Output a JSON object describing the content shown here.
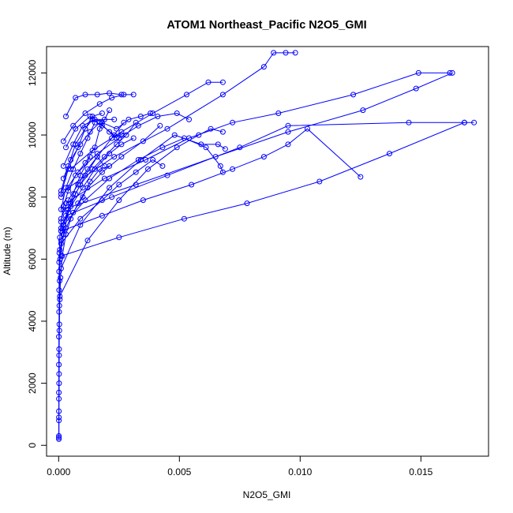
{
  "chart_data": {
    "type": "line",
    "title": "ATOM1 Northeast_Pacific N2O5_GMI",
    "xlabel": "N2O5_GMI",
    "ylabel": "Altitude (m)",
    "xlim": [
      -0.0005,
      0.0178
    ],
    "ylim": [
      -350,
      12850
    ],
    "x_ticks": [
      0.0,
      0.005,
      0.01,
      0.015
    ],
    "x_tick_labels": [
      "0.000",
      "0.005",
      "0.010",
      "0.015"
    ],
    "y_ticks": [
      0,
      2000,
      4000,
      6000,
      8000,
      10000,
      12000
    ],
    "y_tick_labels": [
      "0",
      "2000",
      "4000",
      "6000",
      "8000",
      "10000",
      "12000"
    ],
    "series_color": "#0000ff",
    "grid": false,
    "legend": "none",
    "series": [
      {
        "x": [
          1e-05,
          1e-05,
          1e-05,
          1e-05,
          1e-05,
          2e-05,
          2e-05,
          2e-05,
          3e-05,
          5e-05,
          0.0001,
          0.0002,
          0.0004,
          0.0007,
          0.0011,
          0.0015,
          0.0017,
          0.0021
        ],
        "y": [
          200,
          900,
          1700,
          2600,
          3500,
          4300,
          5000,
          5600,
          6200,
          6700,
          7200,
          7700,
          8200,
          8700,
          9100,
          9600,
          10200,
          10800
        ]
      },
      {
        "x": [
          1e-05,
          1e-05,
          2e-05,
          2e-05,
          3e-05,
          3e-05,
          4e-05,
          6e-05,
          0.0001,
          0.0002,
          0.0004,
          0.0006,
          0.0009,
          0.0013
        ],
        "y": [
          300,
          1100,
          2000,
          2900,
          3700,
          4500,
          5300,
          6000,
          6600,
          7100,
          7600,
          8100,
          8700,
          9300
        ]
      },
      {
        "x": [
          1e-05,
          1e-05,
          1e-05,
          2e-05,
          2e-05,
          3e-05,
          5e-05,
          8e-05,
          0.00015,
          0.0003,
          0.0005,
          0.0008,
          0.0012,
          0.0018,
          0.0026,
          0.0035,
          0.0042
        ],
        "y": [
          250,
          800,
          1500,
          2300,
          3100,
          3900,
          4700,
          5400,
          6100,
          6800,
          7300,
          7800,
          8300,
          8800,
          9300,
          9800,
          10300
        ]
      },
      {
        "x": [
          0.0001,
          0.0018,
          0.0035,
          0.0055,
          0.0072,
          0.0085,
          0.0095,
          0.0103,
          0.0125
        ],
        "y": [
          6900,
          7400,
          7900,
          8400,
          8900,
          9300,
          9700,
          10200,
          8650
        ]
      },
      {
        "x": [
          0.0002,
          0.0032,
          0.0065,
          0.0095,
          0.0126,
          0.0148,
          0.0163
        ],
        "y": [
          7600,
          8400,
          9300,
          10100,
          10800,
          11500,
          12000
        ]
      },
      {
        "x": [
          0.0001,
          0.0025,
          0.0052,
          0.0078,
          0.0108,
          0.0137,
          0.0168,
          0.0172
        ],
        "y": [
          6100,
          6700,
          7300,
          7800,
          8500,
          9400,
          10400,
          10400
        ]
      },
      {
        "x": [
          0.0003,
          0.0022,
          0.0045,
          0.0075,
          0.0095,
          0.0145,
          0.0168
        ],
        "y": [
          7400,
          8000,
          8700,
          9600,
          10300,
          10400,
          10400
        ]
      },
      {
        "x": [
          0.0004,
          0.0023,
          0.0045,
          0.0068,
          0.0085,
          0.0089,
          0.0094,
          0.0098
        ],
        "y": [
          8300,
          9300,
          10200,
          11300,
          12200,
          12650,
          12650,
          12650
        ]
      },
      {
        "x": [
          0.0003,
          0.0019,
          0.0036,
          0.0054,
          0.0072,
          0.0091,
          0.0122,
          0.0149,
          0.0162
        ],
        "y": [
          7800,
          8600,
          9200,
          9900,
          10400,
          10700,
          11300,
          12000,
          12000
        ]
      },
      {
        "x": [
          0.0005,
          0.0014,
          0.0026,
          0.0039,
          0.0053,
          0.0062,
          0.0068
        ],
        "y": [
          8900,
          9500,
          10100,
          10700,
          11300,
          11700,
          11700
        ]
      },
      {
        "x": [
          0.0001,
          0.0009,
          0.0021,
          0.0034,
          0.0048,
          0.0059,
          0.0066,
          0.0069
        ],
        "y": [
          5700,
          7100,
          8300,
          9200,
          10000,
          9700,
          9700,
          9550
        ]
      },
      {
        "x": [
          5e-05,
          0.0012,
          0.0025,
          0.0037,
          0.0049,
          0.0058,
          0.0063,
          0.0068
        ],
        "y": [
          4800,
          6600,
          7900,
          8900,
          9600,
          10000,
          10200,
          10100
        ]
      },
      {
        "x": [
          0.0001,
          0.0008,
          0.0016,
          0.0025,
          0.0033,
          0.0041,
          0.0049,
          0.0054
        ],
        "y": [
          8000,
          8800,
          9400,
          9900,
          10300,
          10600,
          10700,
          10500
        ]
      },
      {
        "x": [
          0.0002,
          0.0011,
          0.0021,
          0.0033,
          0.0043,
          0.0052,
          0.0061,
          0.0067,
          0.0068
        ],
        "y": [
          7100,
          7900,
          8600,
          9200,
          9600,
          9900,
          9600,
          9000,
          8800
        ]
      },
      {
        "x": [
          0.0001,
          0.0009,
          0.0018,
          0.0025,
          0.0032,
          0.0039,
          0.0043
        ],
        "y": [
          6500,
          7300,
          7900,
          8400,
          8800,
          9200,
          9000
        ]
      },
      {
        "x": [
          0.0002,
          0.0006,
          0.0011,
          0.0017,
          0.0022,
          0.0027,
          0.0031
        ],
        "y": [
          9800,
          10300,
          10700,
          11000,
          11200,
          11300,
          11300
        ]
      },
      {
        "x": [
          0.0003,
          0.0007,
          0.0013,
          0.0018,
          0.0024,
          0.0029,
          0.0034,
          0.0038
        ],
        "y": [
          9600,
          10200,
          10600,
          10400,
          10200,
          10500,
          10600,
          10700
        ]
      },
      {
        "x": [
          0.0002,
          0.0005,
          0.0009,
          0.0013,
          0.0017,
          0.0021,
          0.0024
        ],
        "y": [
          8600,
          9200,
          9700,
          10100,
          10400,
          10100,
          9900
        ]
      },
      {
        "x": [
          0.0001,
          0.0004,
          0.0008,
          0.0012,
          0.0016,
          0.0019
        ],
        "y": [
          7300,
          7900,
          8400,
          8900,
          9300,
          9000
        ]
      },
      {
        "x": [
          0.0001,
          0.0005,
          0.001,
          0.0015,
          0.0021,
          0.0026,
          0.0031
        ],
        "y": [
          6900,
          7700,
          8300,
          8900,
          9400,
          9700,
          9900
        ]
      },
      {
        "x": [
          0.0003,
          0.0007,
          0.0011,
          0.0016,
          0.0021,
          0.0026
        ],
        "y": [
          10600,
          11200,
          11300,
          11300,
          11350,
          11300
        ]
      },
      {
        "x": [
          5e-05,
          0.0003,
          0.0006,
          0.001,
          0.0013,
          0.0017,
          0.0021
        ],
        "y": [
          6300,
          7000,
          7500,
          8000,
          8500,
          8900,
          9000
        ]
      },
      {
        "x": [
          0.0001,
          0.0003,
          0.0006,
          0.0009,
          0.0012,
          0.0015
        ],
        "y": [
          7600,
          8300,
          8900,
          9400,
          9900,
          10400
        ]
      },
      {
        "x": [
          0.0001,
          0.0004,
          0.0008,
          0.0011,
          0.0014,
          0.0018,
          0.0023,
          0.0026
        ],
        "y": [
          8100,
          8900,
          9600,
          10200,
          10500,
          10300,
          10000,
          10000
        ]
      },
      {
        "x": [
          0.0001,
          0.0005,
          0.0009,
          0.0014,
          0.0019,
          0.0024,
          0.0028,
          0.0032
        ],
        "y": [
          7000,
          7800,
          8400,
          8900,
          9300,
          9700,
          10000,
          10400
        ]
      },
      {
        "x": [
          2e-05,
          0.0002,
          0.0004,
          0.0007,
          0.0011,
          0.0016,
          0.0022,
          0.0027
        ],
        "y": [
          5900,
          6800,
          7500,
          8100,
          8700,
          9300,
          9900,
          10400
        ]
      },
      {
        "x": [
          0.0002,
          0.0006,
          0.001,
          0.0015,
          0.0019,
          0.0023
        ],
        "y": [
          9000,
          9700,
          10300,
          10500,
          10500,
          10500
        ]
      },
      {
        "x": [
          0.0001,
          0.0004,
          0.0007,
          0.0011,
          0.0014,
          0.0018
        ],
        "y": [
          8200,
          9000,
          9700,
          10200,
          10600,
          10700
        ]
      }
    ]
  }
}
